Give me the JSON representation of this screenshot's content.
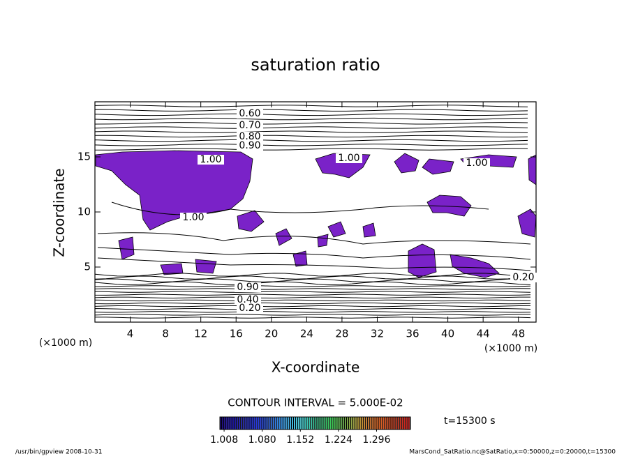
{
  "chart_data": {
    "type": "contour",
    "title": "saturation ratio",
    "x_label": "X-coordinate",
    "y_label": "Z-coordinate",
    "y_unit": "(×1000 m)",
    "x_unit": "(×1000 m)",
    "xlim": [
      0,
      50
    ],
    "xticks": [
      4,
      8,
      12,
      16,
      20,
      24,
      28,
      32,
      36,
      40,
      44,
      48
    ],
    "ylim": [
      0,
      20
    ],
    "yticks": [
      5,
      10,
      15
    ],
    "fill_color": "#7a22c8",
    "contour_labels": [
      {
        "value": 0.6,
        "label": "0.60"
      },
      {
        "value": 0.7,
        "label": "0.70"
      },
      {
        "value": 0.8,
        "label": "0.80"
      },
      {
        "value": 0.9,
        "label": "0.90"
      },
      {
        "value": 1.0,
        "label": "1.00"
      },
      {
        "value": 1.0,
        "label": "1.00"
      },
      {
        "value": 1.0,
        "label": "1.00"
      },
      {
        "value": 1.0,
        "label": "1.00"
      },
      {
        "value": 0.9,
        "label": "0.90"
      },
      {
        "value": 0.4,
        "label": "0.40"
      },
      {
        "value": 0.2,
        "label": "0.20"
      },
      {
        "value": 0.2,
        "label": "0.20"
      }
    ],
    "contour_interval": "CONTOUR INTERVAL = 5.000E-02",
    "colorbar": {
      "clim": [
        1.0,
        1.36
      ],
      "ticks": [
        1.008,
        {
          "value": 1.08,
          "label": "1.080"
        },
        1.152,
        1.224,
        1.296
      ]
    },
    "time_label": "t=15300 s",
    "footer_left": "/usr/bin/gpview   2008-10-31",
    "footer_right": "MarsCond_SatRatio.nc@SatRatio,x=0:50000,z=0:20000,t=15300"
  }
}
